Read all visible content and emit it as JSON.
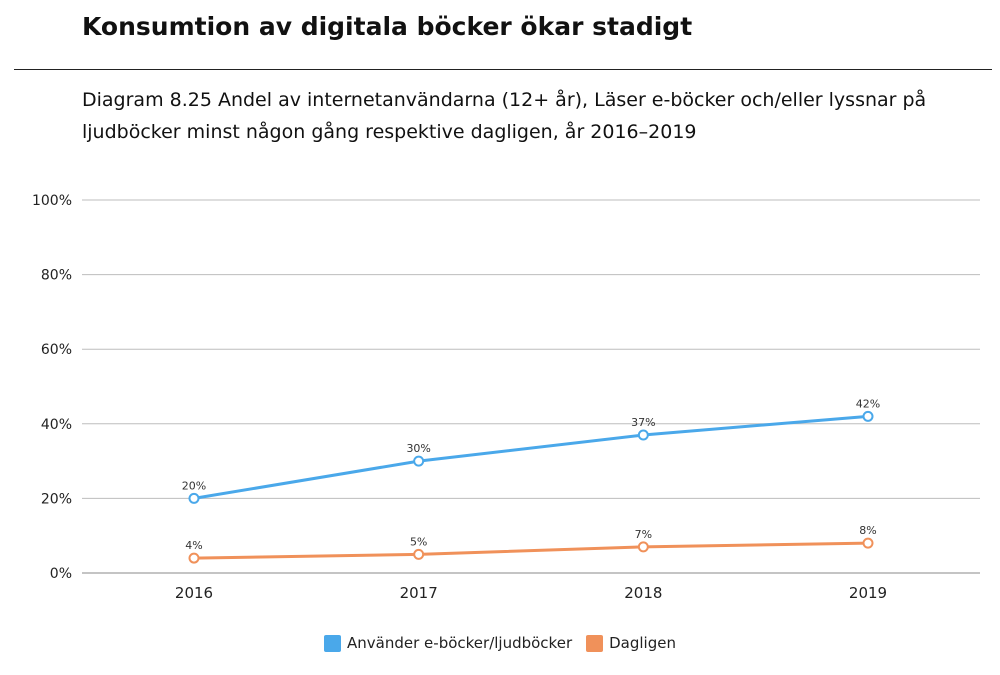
{
  "heading": "Konsumtion av digitala böcker ökar stadigt",
  "subtitle": "Diagram 8.25 Andel av internetanvändarna (12+ år), Läser e-böcker och/eller lyssnar på ljudböcker minst någon gång respektive dagligen, år 2016–2019",
  "colors": {
    "series1": "#4aa8ea",
    "series2": "#f0915a",
    "grid": "#bdbdbd",
    "axis": "#888888"
  },
  "chart_data": {
    "type": "line",
    "x": [
      "2016",
      "2017",
      "2018",
      "2019"
    ],
    "ylim": [
      0,
      100
    ],
    "yticks": [
      0,
      20,
      40,
      60,
      80,
      100
    ],
    "ytick_labels": [
      "0%",
      "20%",
      "40%",
      "60%",
      "80%",
      "100%"
    ],
    "grid": true,
    "legend_position": "bottom-center",
    "series": [
      {
        "name": "Använder e-böcker/ljudböcker",
        "values": [
          20,
          30,
          37,
          42
        ],
        "labels": [
          "20%",
          "30%",
          "37%",
          "42%"
        ]
      },
      {
        "name": "Dagligen",
        "values": [
          4,
          5,
          7,
          8
        ],
        "labels": [
          "4%",
          "5%",
          "7%",
          "8%"
        ]
      }
    ]
  }
}
